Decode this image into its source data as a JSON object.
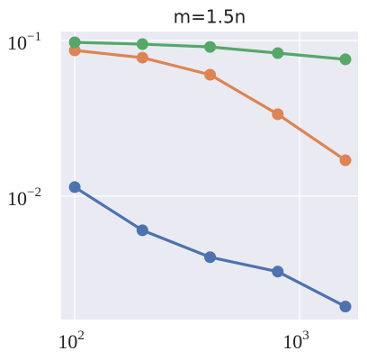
{
  "chart_data": {
    "type": "line",
    "title": "m=1.5n",
    "x": [
      100,
      200,
      400,
      800,
      1600
    ],
    "xscale": "log",
    "yscale": "log",
    "grid": true,
    "xlim": [
      87,
      1820
    ],
    "ylim": [
      0.00161,
      0.1143
    ],
    "xticks": [
      {
        "value": 100,
        "label": "10",
        "exponent": "2"
      },
      {
        "value": 1000,
        "label": "10",
        "exponent": "3"
      }
    ],
    "yticks": [
      {
        "value": 0.01,
        "label": "10",
        "exponent": "−2"
      },
      {
        "value": 0.1,
        "label": "10",
        "exponent": "−1"
      }
    ],
    "series": [
      {
        "color": "#4c72b0",
        "values": [
          0.01142,
          0.00603,
          0.00405,
          0.00327,
          0.00195
        ]
      },
      {
        "color": "#dd8452",
        "values": [
          0.0864,
          0.0776,
          0.0603,
          0.0336,
          0.017
        ]
      },
      {
        "color": "#55a868",
        "values": [
          0.0974,
          0.0948,
          0.091,
          0.083,
          0.0757
        ]
      }
    ]
  }
}
